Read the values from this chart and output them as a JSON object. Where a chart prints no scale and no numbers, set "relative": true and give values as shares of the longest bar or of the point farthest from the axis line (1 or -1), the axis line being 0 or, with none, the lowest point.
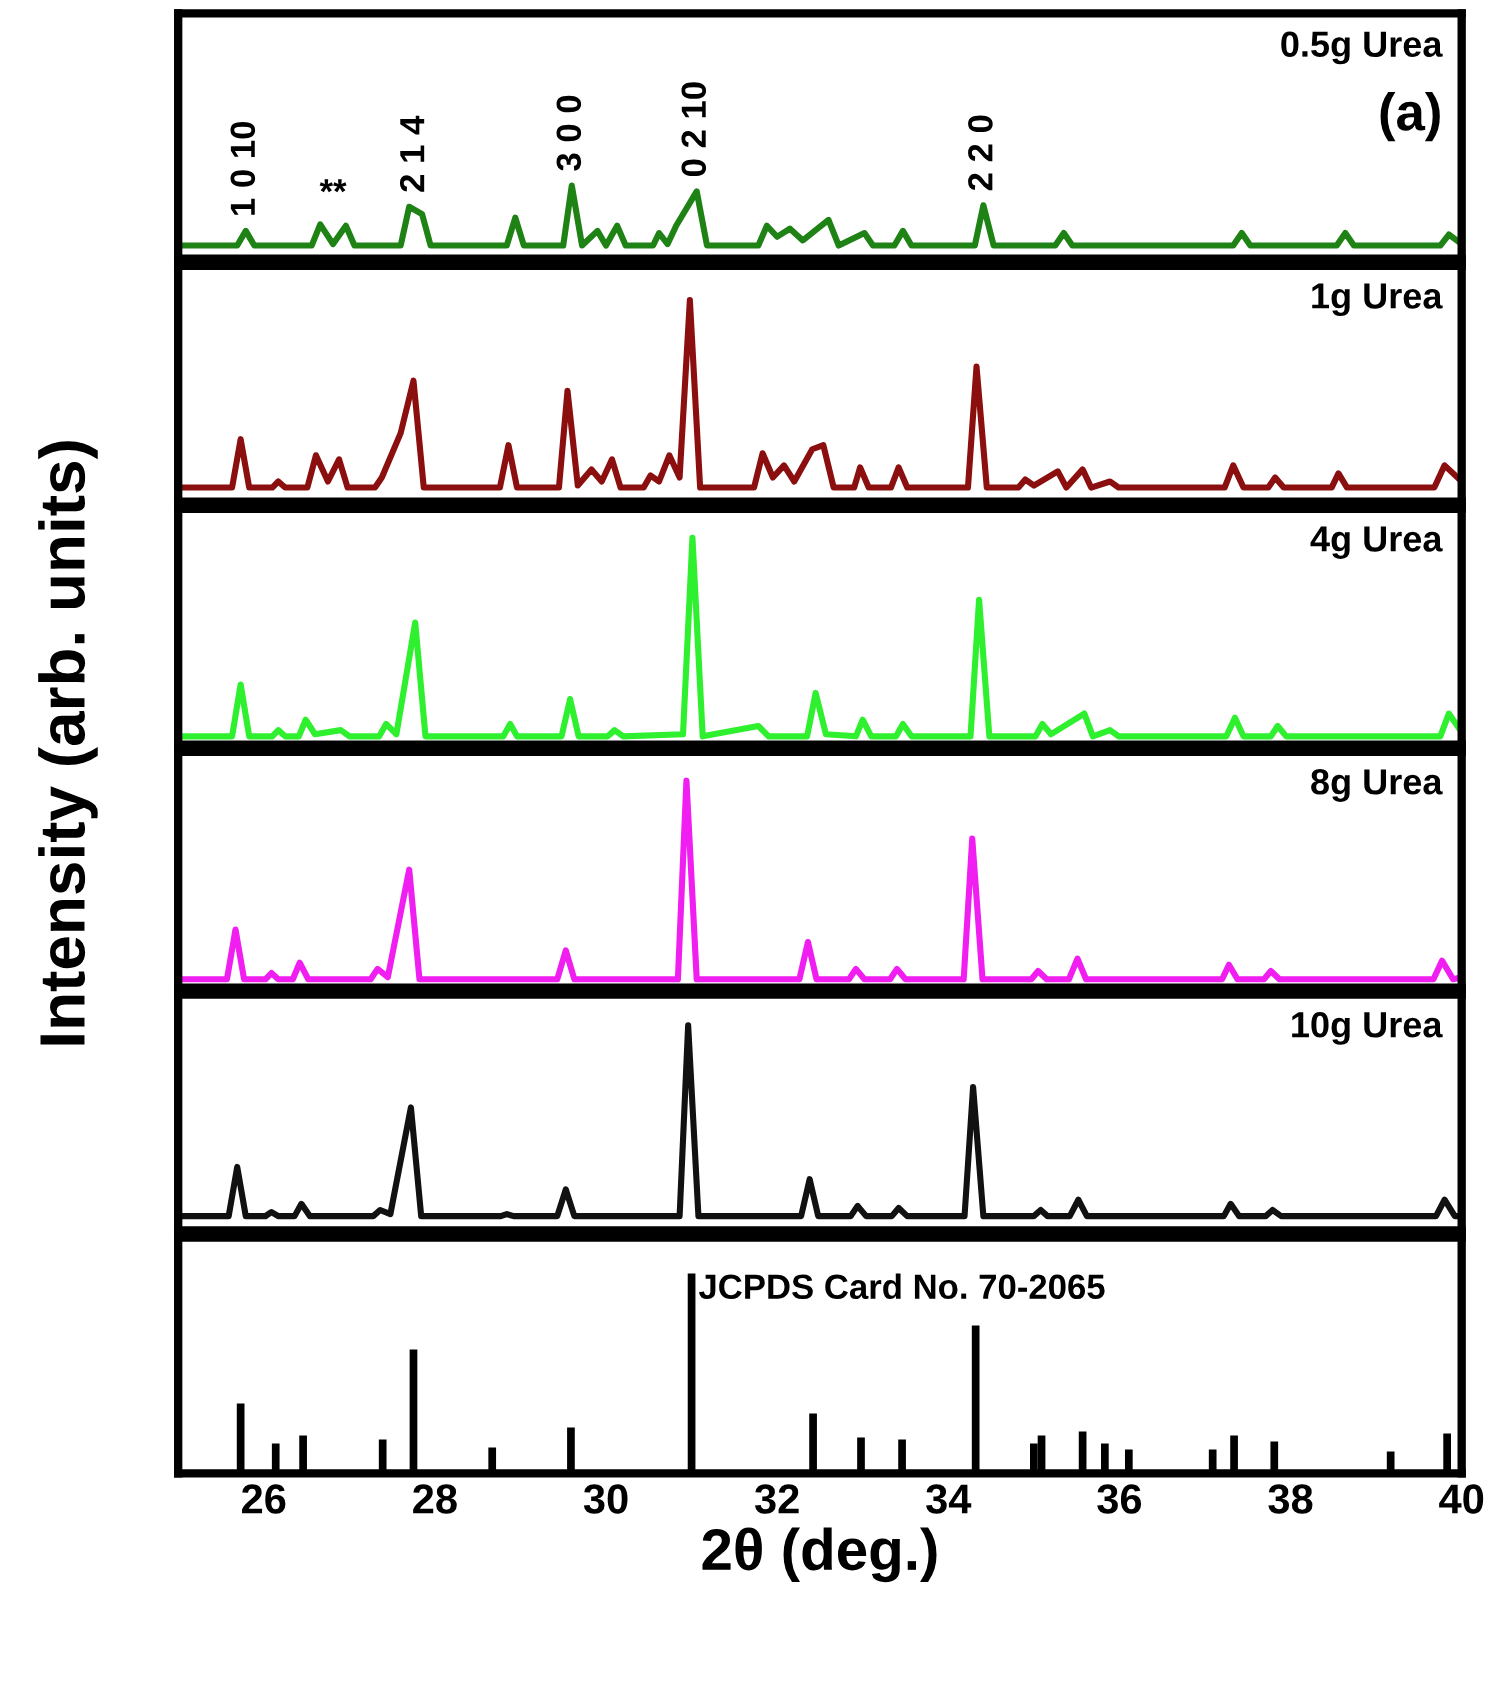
{
  "chart_data": [
    {
      "type": "line",
      "xlim": [
        25,
        40
      ],
      "xticks": [
        26,
        28,
        30,
        32,
        34,
        36,
        38,
        40
      ],
      "tick_labels": false,
      "relative": true,
      "grid": false,
      "legend": false,
      "line_style": "solid",
      "marker": "none",
      "x": [
        25,
        25.69,
        25.79,
        25.89,
        26.56,
        26.66,
        26.81,
        26.96,
        27.06,
        27.6,
        27.7,
        27.85,
        27.95,
        28.84,
        28.94,
        29.04,
        29.5,
        29.6,
        29.72,
        29.9,
        30.0,
        30.13,
        30.23,
        30.55,
        30.62,
        30.72,
        30.82,
        31.06,
        31.18,
        31.78,
        31.88,
        32.0,
        32.15,
        32.3,
        32.6,
        32.72,
        33.02,
        33.12,
        33.37,
        33.47,
        33.57,
        34.31,
        34.41,
        34.53,
        35.25,
        35.35,
        35.45,
        37.33,
        37.43,
        37.53,
        38.54,
        38.64,
        38.74,
        39.75,
        39.85,
        40
      ],
      "series": [
        {
          "name": "0.5g Urea",
          "color": "#1e8214",
          "values": [
            0.18,
            0.18,
            0.38,
            0.18,
            0.18,
            0.47,
            0.2,
            0.45,
            0.18,
            0.18,
            0.71,
            0.61,
            0.18,
            0.18,
            0.56,
            0.18,
            0.18,
            1,
            0.18,
            0.38,
            0.18,
            0.45,
            0.18,
            0.18,
            0.35,
            0.2,
            0.45,
            0.92,
            0.18,
            0.18,
            0.45,
            0.3,
            0.41,
            0.25,
            0.53,
            0.18,
            0.35,
            0.18,
            0.18,
            0.38,
            0.18,
            0.18,
            0.73,
            0.18,
            0.18,
            0.35,
            0.18,
            0.18,
            0.35,
            0.18,
            0.18,
            0.35,
            0.18,
            0.18,
            0.33,
            0.2
          ]
        }
      ],
      "annotations": [
        "(a)",
        {
          "text": "1 0 10",
          "x": 25.79,
          "y": 0.38
        },
        {
          "text": "**",
          "x": 26.81,
          "y": 0.47
        },
        {
          "text": "2 1 4",
          "x": 27.77,
          "y": 0.71
        },
        {
          "text": "3 0 0",
          "x": 29.6,
          "y": 1
        },
        {
          "text": "0 2 10",
          "x": 31.06,
          "y": 0.92
        },
        {
          "text": "2 2 0",
          "x": 34.41,
          "y": 0.73
        }
      ]
    },
    {
      "type": "line",
      "xlim": [
        25,
        40
      ],
      "xticks": [
        26,
        28,
        30,
        32,
        34,
        36,
        38,
        40
      ],
      "tick_labels": false,
      "relative": true,
      "grid": false,
      "legend": false,
      "line_style": "solid",
      "marker": "none",
      "x": [
        25,
        25.63,
        25.73,
        25.83,
        26.1,
        26.17,
        26.25,
        26.51,
        26.61,
        26.75,
        26.88,
        26.98,
        27.3,
        27.38,
        27.6,
        27.75,
        27.87,
        28.76,
        28.86,
        28.96,
        29.45,
        29.55,
        29.67,
        29.83,
        29.95,
        30.07,
        30.17,
        30.44,
        30.52,
        30.62,
        30.74,
        30.86,
        30.98,
        31.1,
        31.73,
        31.83,
        31.95,
        32.08,
        32.2,
        32.41,
        32.54,
        32.66,
        32.9,
        32.97,
        33.07,
        33.33,
        33.42,
        33.52,
        34.23,
        34.33,
        34.45,
        34.82,
        34.9,
        35.0,
        35.28,
        35.38,
        35.57,
        35.67,
        35.89,
        35.99,
        37.23,
        37.33,
        37.45,
        37.74,
        37.82,
        37.92,
        38.48,
        38.56,
        38.66,
        39.68,
        39.8,
        40
      ],
      "series": [
        {
          "name": "1g Urea",
          "color": "#8b0f0f",
          "values": [
            0.07,
            0.07,
            0.31,
            0.07,
            0.07,
            0.1,
            0.07,
            0.07,
            0.23,
            0.1,
            0.21,
            0.07,
            0.07,
            0.12,
            0.34,
            0.6,
            0.07,
            0.07,
            0.28,
            0.07,
            0.07,
            0.55,
            0.08,
            0.16,
            0.1,
            0.21,
            0.07,
            0.07,
            0.13,
            0.1,
            0.23,
            0.12,
            1,
            0.07,
            0.07,
            0.24,
            0.12,
            0.18,
            0.1,
            0.26,
            0.28,
            0.07,
            0.07,
            0.17,
            0.07,
            0.07,
            0.17,
            0.07,
            0.07,
            0.67,
            0.07,
            0.07,
            0.11,
            0.08,
            0.15,
            0.07,
            0.16,
            0.07,
            0.1,
            0.07,
            0.07,
            0.18,
            0.07,
            0.07,
            0.12,
            0.07,
            0.07,
            0.14,
            0.07,
            0.07,
            0.18,
            0.1
          ]
        }
      ]
    },
    {
      "type": "line",
      "xlim": [
        25,
        40
      ],
      "xticks": [
        26,
        28,
        30,
        32,
        34,
        36,
        38,
        40
      ],
      "tick_labels": false,
      "relative": true,
      "grid": false,
      "legend": false,
      "line_style": "solid",
      "marker": "none",
      "x": [
        25,
        25.63,
        25.73,
        25.83,
        26.1,
        26.17,
        26.25,
        26.41,
        26.49,
        26.6,
        26.9,
        27.0,
        27.35,
        27.43,
        27.55,
        27.77,
        27.89,
        28.8,
        28.88,
        28.96,
        29.48,
        29.58,
        29.68,
        30.02,
        30.1,
        30.2,
        30.9,
        31.01,
        31.13,
        31.78,
        31.9,
        32.35,
        32.45,
        32.57,
        32.92,
        33.0,
        33.1,
        33.39,
        33.47,
        33.57,
        34.26,
        34.36,
        34.48,
        35.02,
        35.1,
        35.2,
        35.59,
        35.69,
        35.89,
        35.99,
        37.25,
        37.35,
        37.45,
        37.77,
        37.85,
        37.95,
        39.75,
        39.85,
        40
      ],
      "series": [
        {
          "name": "4g Urea",
          "color": "#2ef02e",
          "values": [
            0.04,
            0.04,
            0.29,
            0.04,
            0.04,
            0.07,
            0.04,
            0.04,
            0.12,
            0.05,
            0.07,
            0.04,
            0.04,
            0.1,
            0.05,
            0.59,
            0.04,
            0.04,
            0.1,
            0.04,
            0.04,
            0.22,
            0.04,
            0.04,
            0.07,
            0.04,
            0.05,
            1,
            0.04,
            0.09,
            0.04,
            0.04,
            0.25,
            0.05,
            0.04,
            0.12,
            0.04,
            0.04,
            0.1,
            0.04,
            0.04,
            0.7,
            0.04,
            0.04,
            0.1,
            0.05,
            0.15,
            0.04,
            0.07,
            0.04,
            0.04,
            0.13,
            0.04,
            0.04,
            0.09,
            0.04,
            0.04,
            0.15,
            0.06
          ]
        }
      ]
    },
    {
      "type": "line",
      "xlim": [
        25,
        40
      ],
      "xticks": [
        26,
        28,
        30,
        32,
        34,
        36,
        38,
        40
      ],
      "tick_labels": false,
      "relative": true,
      "grid": false,
      "legend": false,
      "line_style": "solid",
      "marker": "none",
      "x": [
        25,
        25.57,
        25.67,
        25.77,
        26.02,
        26.09,
        26.17,
        26.34,
        26.42,
        26.52,
        27.25,
        27.33,
        27.45,
        27.7,
        27.82,
        29.43,
        29.53,
        29.63,
        30.84,
        30.94,
        31.06,
        32.26,
        32.36,
        32.46,
        32.84,
        32.92,
        33.02,
        33.32,
        33.4,
        33.5,
        34.18,
        34.28,
        34.4,
        34.97,
        35.05,
        35.15,
        35.41,
        35.51,
        35.61,
        37.2,
        37.28,
        37.38,
        37.69,
        37.77,
        37.87,
        39.67,
        39.77,
        39.9,
        40
      ],
      "series": [
        {
          "name": "8g Urea",
          "color": "#f01ef0",
          "values": [
            0.04,
            0.04,
            0.28,
            0.04,
            0.04,
            0.07,
            0.04,
            0.04,
            0.12,
            0.04,
            0.04,
            0.09,
            0.05,
            0.57,
            0.04,
            0.04,
            0.18,
            0.04,
            0.04,
            1,
            0.04,
            0.04,
            0.22,
            0.04,
            0.04,
            0.09,
            0.04,
            0.04,
            0.09,
            0.04,
            0.04,
            0.72,
            0.04,
            0.04,
            0.08,
            0.04,
            0.04,
            0.14,
            0.04,
            0.04,
            0.11,
            0.04,
            0.04,
            0.08,
            0.04,
            0.04,
            0.13,
            0.04,
            0.05
          ]
        }
      ]
    },
    {
      "type": "line",
      "xlim": [
        25,
        40
      ],
      "xticks": [
        26,
        28,
        30,
        32,
        34,
        36,
        38,
        40
      ],
      "tick_labels": false,
      "relative": true,
      "grid": false,
      "legend": false,
      "line_style": "solid",
      "marker": "none",
      "x": [
        25,
        25.59,
        25.69,
        25.79,
        26.02,
        26.09,
        26.17,
        26.36,
        26.44,
        26.54,
        27.28,
        27.36,
        27.48,
        27.72,
        27.84,
        28.77,
        28.84,
        28.92,
        29.43,
        29.53,
        29.63,
        30.86,
        30.96,
        31.08,
        32.28,
        32.38,
        32.48,
        32.86,
        32.94,
        33.04,
        33.34,
        33.42,
        33.52,
        34.19,
        34.29,
        34.41,
        35.0,
        35.08,
        35.16,
        35.42,
        35.52,
        35.62,
        37.22,
        37.3,
        37.4,
        37.71,
        37.79,
        37.89,
        39.7,
        39.8,
        39.92,
        40
      ],
      "series": [
        {
          "name": "10g Urea",
          "color": "#111111",
          "values": [
            0.07,
            0.07,
            0.31,
            0.07,
            0.07,
            0.09,
            0.07,
            0.07,
            0.13,
            0.07,
            0.07,
            0.1,
            0.08,
            0.6,
            0.07,
            0.07,
            0.08,
            0.07,
            0.07,
            0.2,
            0.07,
            0.07,
            1,
            0.07,
            0.07,
            0.25,
            0.07,
            0.07,
            0.12,
            0.07,
            0.07,
            0.11,
            0.07,
            0.07,
            0.7,
            0.07,
            0.07,
            0.1,
            0.07,
            0.07,
            0.15,
            0.07,
            0.07,
            0.13,
            0.07,
            0.07,
            0.1,
            0.07,
            0.07,
            0.15,
            0.07,
            0.07
          ]
        }
      ]
    },
    {
      "type": "bar",
      "xlim": [
        25,
        40
      ],
      "xticks": [
        26,
        28,
        30,
        32,
        34,
        36,
        38,
        40
      ],
      "tick_labels": "x",
      "relative": true,
      "grid": false,
      "legend": false,
      "xlabel": "2θ (deg.)",
      "ylabel": "Intensity (arb. units)",
      "x": [
        25.73,
        26.14,
        26.46,
        27.39,
        27.75,
        28.67,
        29.59,
        31.0,
        32.42,
        32.98,
        33.46,
        34.32,
        35.0,
        35.09,
        35.57,
        35.83,
        36.11,
        37.09,
        37.34,
        37.81,
        39.17,
        39.83
      ],
      "series": [
        {
          "name": "JCPDS Card No. 70-2065",
          "color": "#000000",
          "values": [
            0.35,
            0.15,
            0.19,
            0.17,
            0.62,
            0.13,
            0.23,
            1,
            0.3,
            0.18,
            0.17,
            0.74,
            0.15,
            0.19,
            0.21,
            0.15,
            0.12,
            0.12,
            0.19,
            0.16,
            0.11,
            0.2
          ]
        }
      ]
    }
  ]
}
